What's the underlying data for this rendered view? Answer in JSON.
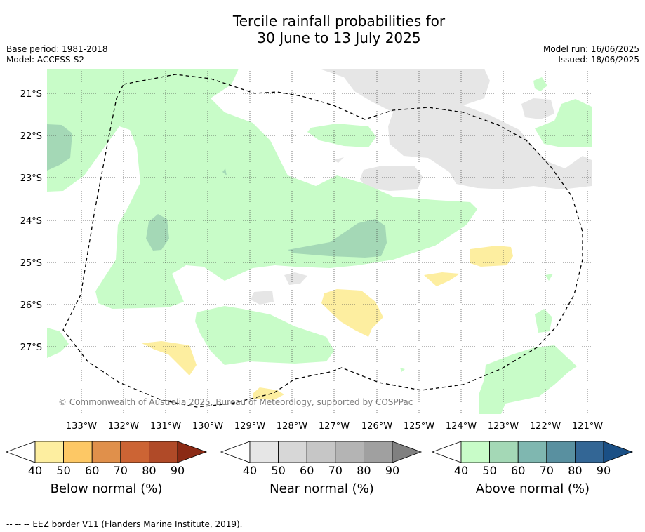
{
  "title_line1": "Tercile rainfall probabilities for",
  "title_line2": "30 June to 13 July 2025",
  "meta_left": {
    "base_period": "Base period: 1981-2018",
    "model": "Model: ACCESS-S2"
  },
  "meta_right": {
    "model_run": "Model run: 16/06/2025",
    "issued": "Issued: 18/06/2025"
  },
  "map": {
    "lat_labels": [
      "21°S",
      "22°S",
      "23°S",
      "24°S",
      "25°S",
      "26°S",
      "27°S"
    ],
    "lon_labels": [
      "133°W",
      "132°W",
      "131°W",
      "130°W",
      "129°W",
      "128°W",
      "127°W",
      "126°W",
      "125°W",
      "124°W",
      "123°W",
      "122°W",
      "121°W"
    ],
    "copyright": "© Commonwealth of Australia 2025, Bureau of Meteorology, supported by COSPPac"
  },
  "colorbars": [
    {
      "name": "below",
      "label": "Below normal (%)",
      "ticks": [
        "40",
        "50",
        "60",
        "70",
        "80",
        "90"
      ],
      "colors": [
        "#ffffff",
        "#fdeea0",
        "#fdc865",
        "#e0904b",
        "#cc6434",
        "#b04a28",
        "#8b2a15"
      ]
    },
    {
      "name": "near",
      "label": "Near normal (%)",
      "ticks": [
        "40",
        "50",
        "60",
        "70",
        "80",
        "90"
      ],
      "colors": [
        "#ffffff",
        "#e6e6e6",
        "#d7d7d7",
        "#c6c6c6",
        "#b4b4b4",
        "#a0a0a0",
        "#808080"
      ]
    },
    {
      "name": "above",
      "label": "Above normal (%)",
      "ticks": [
        "40",
        "50",
        "60",
        "70",
        "80",
        "90"
      ],
      "colors": [
        "#ffffff",
        "#c8fcc8",
        "#a4d8b6",
        "#7fb7b0",
        "#5990a0",
        "#336695",
        "#1a4f85"
      ]
    }
  ],
  "footnote": "-- -- -- EEZ border V11 (Flanders Marine Institute, 2019)."
}
